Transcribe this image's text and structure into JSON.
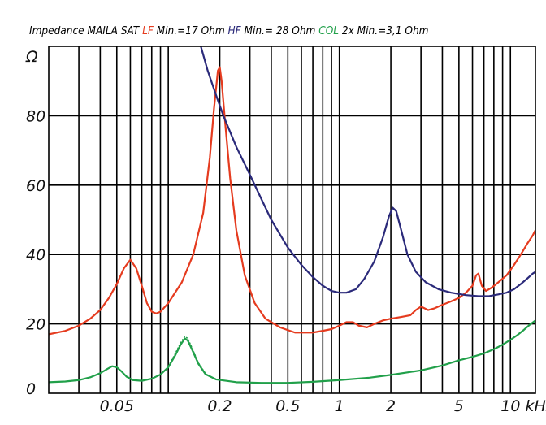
{
  "chart_data": {
    "type": "line",
    "title_parts": [
      {
        "text": "Impedance MAILA SAT ",
        "color": "#000000"
      },
      {
        "text": "LF",
        "color": "#e53b1f"
      },
      {
        "text": " Min.=17 Ohm ",
        "color": "#000000"
      },
      {
        "text": "HF",
        "color": "#2b2a7a"
      },
      {
        "text": " Min.= 28 Ohm ",
        "color": "#000000"
      },
      {
        "text": "COL",
        "color": "#21a04a"
      },
      {
        "text": " 2x  Min.=3,1 Ohm",
        "color": "#000000"
      }
    ],
    "y_unit": "Ω",
    "x_unit": "kHz",
    "x_scale": "log",
    "xlim": [
      0.02,
      14
    ],
    "ylim": [
      0,
      100
    ],
    "grid": true,
    "x_ticks": [
      {
        "value": 0.05,
        "label": "0.05"
      },
      {
        "value": 0.2,
        "label": "0.2"
      },
      {
        "value": 0.5,
        "label": "0.5"
      },
      {
        "value": 1,
        "label": "1"
      },
      {
        "value": 2,
        "label": "2"
      },
      {
        "value": 5,
        "label": "5"
      },
      {
        "value": 10,
        "label": "10 kHz"
      }
    ],
    "x_gridlines": [
      0.03,
      0.04,
      0.05,
      0.06,
      0.07,
      0.08,
      0.09,
      0.1,
      0.2,
      0.3,
      0.4,
      0.5,
      0.6,
      0.7,
      0.8,
      0.9,
      1,
      2,
      3,
      4,
      5,
      6,
      7,
      8,
      9,
      10
    ],
    "y_ticks": [
      {
        "value": 0,
        "label": "0"
      },
      {
        "value": 20,
        "label": "20"
      },
      {
        "value": 40,
        "label": "40"
      },
      {
        "value": 60,
        "label": "60"
      },
      {
        "value": 80,
        "label": "80"
      },
      {
        "value": 100,
        "label": "Ω"
      }
    ],
    "series": [
      {
        "name": "LF",
        "color": "#e53b1f",
        "points": [
          [
            0.02,
            17
          ],
          [
            0.025,
            18
          ],
          [
            0.03,
            19.5
          ],
          [
            0.035,
            21.5
          ],
          [
            0.04,
            24
          ],
          [
            0.045,
            27.5
          ],
          [
            0.05,
            31.5
          ],
          [
            0.055,
            36
          ],
          [
            0.06,
            38.5
          ],
          [
            0.065,
            36
          ],
          [
            0.07,
            31
          ],
          [
            0.075,
            26
          ],
          [
            0.08,
            23.5
          ],
          [
            0.085,
            23
          ],
          [
            0.09,
            23.5
          ],
          [
            0.1,
            26
          ],
          [
            0.12,
            32
          ],
          [
            0.14,
            40
          ],
          [
            0.16,
            52
          ],
          [
            0.175,
            68
          ],
          [
            0.185,
            82
          ],
          [
            0.195,
            93
          ],
          [
            0.2,
            94
          ],
          [
            0.205,
            90
          ],
          [
            0.215,
            78
          ],
          [
            0.23,
            62
          ],
          [
            0.25,
            47
          ],
          [
            0.28,
            34
          ],
          [
            0.32,
            26
          ],
          [
            0.37,
            21.5
          ],
          [
            0.45,
            19
          ],
          [
            0.55,
            17.5
          ],
          [
            0.7,
            17.5
          ],
          [
            0.8,
            18
          ],
          [
            0.9,
            18.5
          ],
          [
            1.0,
            19.5
          ],
          [
            1.1,
            20.5
          ],
          [
            1.2,
            20.5
          ],
          [
            1.3,
            19.5
          ],
          [
            1.45,
            19
          ],
          [
            1.6,
            20
          ],
          [
            1.8,
            21
          ],
          [
            2.0,
            21.5
          ],
          [
            2.3,
            22
          ],
          [
            2.6,
            22.5
          ],
          [
            2.8,
            24
          ],
          [
            3.0,
            25
          ],
          [
            3.3,
            24
          ],
          [
            3.6,
            24.5
          ],
          [
            4.0,
            25.5
          ],
          [
            4.5,
            26.5
          ],
          [
            5.0,
            27.5
          ],
          [
            5.5,
            29
          ],
          [
            6.0,
            31
          ],
          [
            6.3,
            34
          ],
          [
            6.5,
            34.5
          ],
          [
            6.8,
            31
          ],
          [
            7.2,
            29.5
          ],
          [
            7.8,
            30.5
          ],
          [
            8.5,
            32
          ],
          [
            9.5,
            34
          ],
          [
            10.5,
            37
          ],
          [
            11.5,
            40
          ],
          [
            12.5,
            43
          ],
          [
            13.5,
            45.5
          ],
          [
            14,
            47
          ]
        ]
      },
      {
        "name": "HF",
        "color": "#2b2a7a",
        "points": [
          [
            0.155,
            100
          ],
          [
            0.17,
            93
          ],
          [
            0.19,
            86
          ],
          [
            0.21,
            80
          ],
          [
            0.25,
            71
          ],
          [
            0.3,
            63
          ],
          [
            0.35,
            56
          ],
          [
            0.4,
            50
          ],
          [
            0.5,
            42
          ],
          [
            0.6,
            37
          ],
          [
            0.7,
            33.5
          ],
          [
            0.8,
            31
          ],
          [
            0.9,
            29.5
          ],
          [
            1.0,
            29
          ],
          [
            1.1,
            29
          ],
          [
            1.25,
            30
          ],
          [
            1.4,
            33
          ],
          [
            1.6,
            38
          ],
          [
            1.8,
            45
          ],
          [
            1.95,
            51
          ],
          [
            2.05,
            53.5
          ],
          [
            2.15,
            52.5
          ],
          [
            2.3,
            47
          ],
          [
            2.5,
            40
          ],
          [
            2.8,
            35
          ],
          [
            3.2,
            32
          ],
          [
            3.8,
            30
          ],
          [
            4.5,
            29
          ],
          [
            5.5,
            28.3
          ],
          [
            6.5,
            28
          ],
          [
            7.5,
            28
          ],
          [
            8.5,
            28.5
          ],
          [
            9.5,
            29
          ],
          [
            10.5,
            30
          ],
          [
            11.5,
            31.5
          ],
          [
            12.5,
            33
          ],
          [
            13.5,
            34.5
          ],
          [
            14,
            35
          ]
        ]
      },
      {
        "name": "COL",
        "color": "#21a04a",
        "points": [
          [
            0.02,
            3.2
          ],
          [
            0.025,
            3.4
          ],
          [
            0.03,
            3.8
          ],
          [
            0.035,
            4.6
          ],
          [
            0.04,
            5.8
          ],
          [
            0.044,
            7
          ],
          [
            0.047,
            7.8
          ],
          [
            0.05,
            7.5
          ],
          [
            0.053,
            6.4
          ],
          [
            0.057,
            4.8
          ],
          [
            0.062,
            3.8
          ],
          [
            0.07,
            3.6
          ],
          [
            0.08,
            4.2
          ],
          [
            0.09,
            5.4
          ],
          [
            0.1,
            7.5
          ],
          [
            0.11,
            11
          ],
          [
            0.118,
            14
          ],
          [
            0.125,
            15.8
          ],
          [
            0.13,
            15.2
          ],
          [
            0.138,
            12.5
          ],
          [
            0.15,
            8.5
          ],
          [
            0.165,
            5.5
          ],
          [
            0.19,
            4
          ],
          [
            0.25,
            3.2
          ],
          [
            0.35,
            3
          ],
          [
            0.5,
            3
          ],
          [
            0.7,
            3.3
          ],
          [
            1.0,
            3.8
          ],
          [
            1.5,
            4.5
          ],
          [
            2.0,
            5.3
          ],
          [
            3.0,
            6.6
          ],
          [
            4.0,
            8
          ],
          [
            5.0,
            9.5
          ],
          [
            6.0,
            10.5
          ],
          [
            7.0,
            11.5
          ],
          [
            8.0,
            12.7
          ],
          [
            9.0,
            14
          ],
          [
            10.0,
            15.4
          ],
          [
            11.0,
            16.8
          ],
          [
            12.0,
            18.3
          ],
          [
            13.0,
            19.8
          ],
          [
            14.0,
            21
          ]
        ]
      },
      {
        "name": "",
        "color": "#21a04a",
        "style": "dotted",
        "points": [
          [
            0.1,
            7.8
          ],
          [
            0.11,
            11.5
          ],
          [
            0.118,
            14.6
          ],
          [
            0.125,
            16.4
          ],
          [
            0.13,
            15.8
          ],
          [
            0.138,
            13
          ],
          [
            0.15,
            8.8
          ],
          [
            0.165,
            5.7
          ]
        ]
      }
    ]
  }
}
